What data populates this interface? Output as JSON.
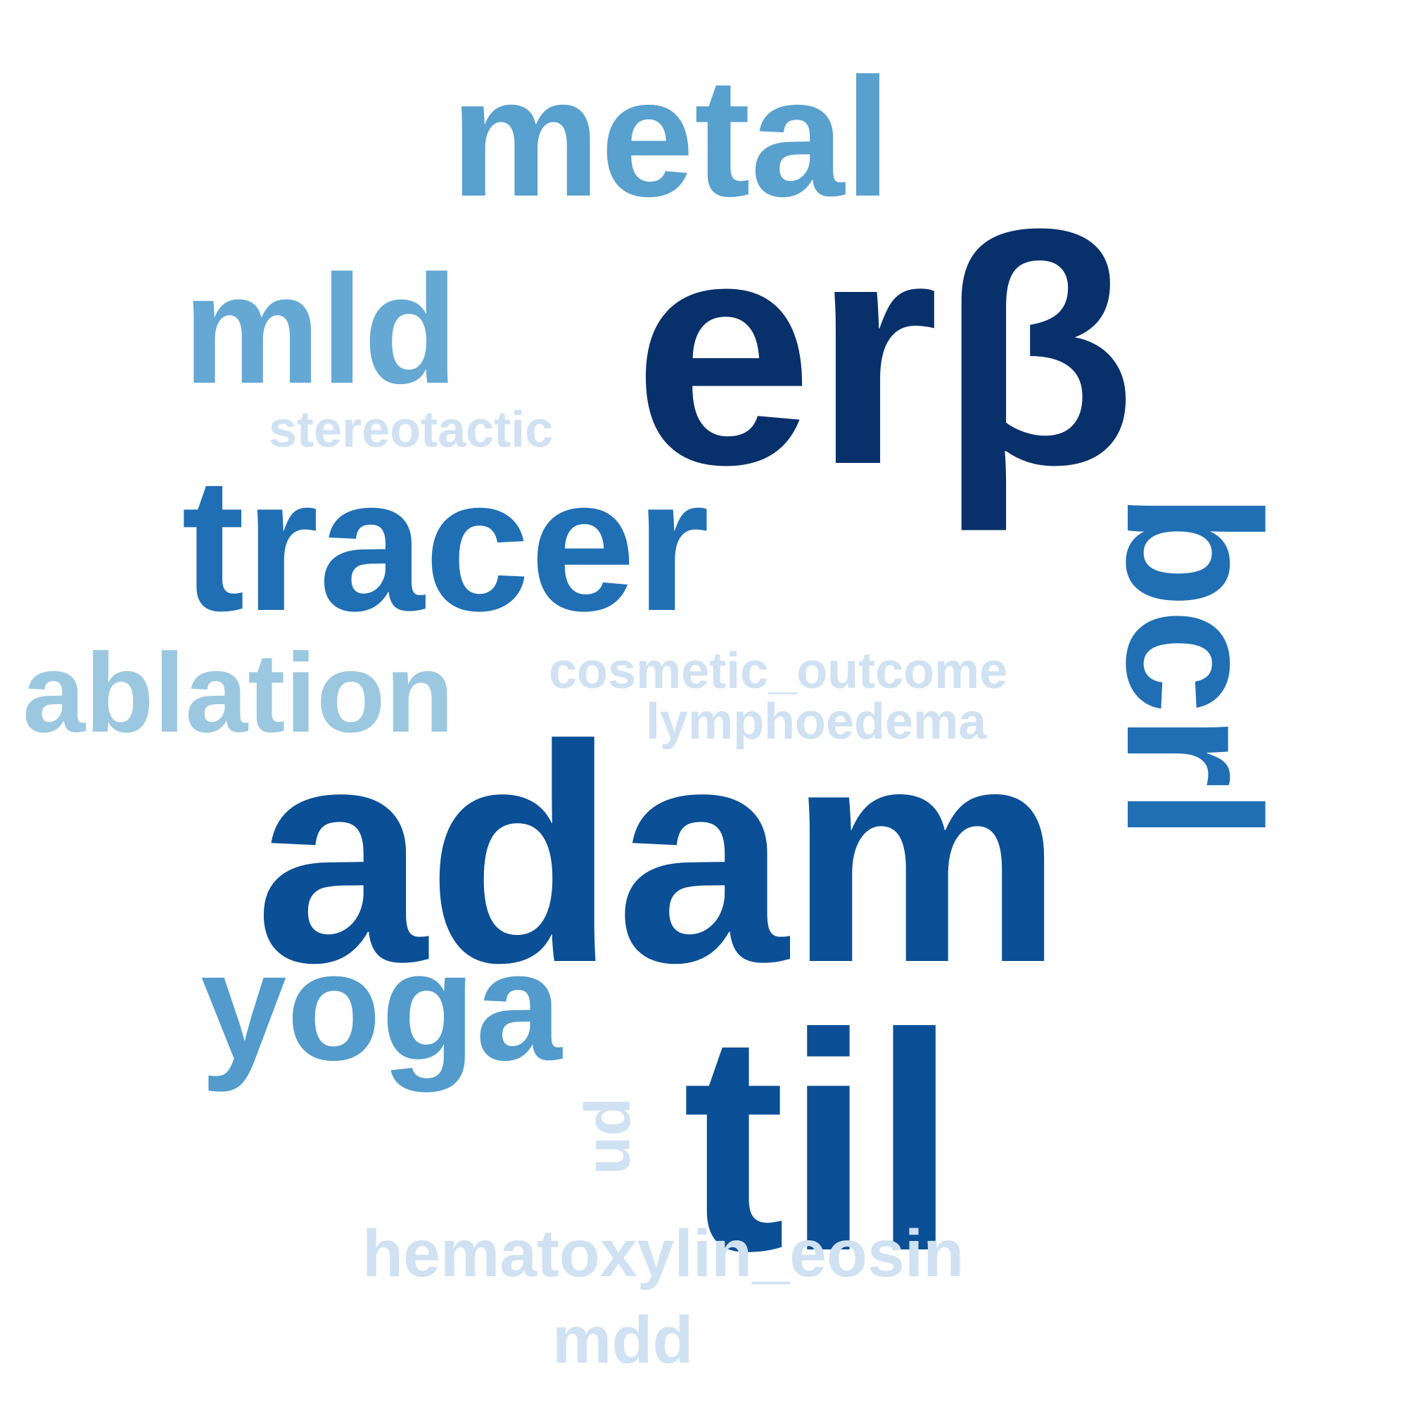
{
  "words": [
    {
      "text": "erβ",
      "color": "#08306b",
      "rotated": false
    },
    {
      "text": "adam",
      "color": "#0b4f96",
      "rotated": false
    },
    {
      "text": "til",
      "color": "#0b4f96",
      "rotated": false
    },
    {
      "text": "bcrl",
      "color": "#206fb4",
      "rotated": true
    },
    {
      "text": "tracer",
      "color": "#206fb4",
      "rotated": false
    },
    {
      "text": "metal",
      "color": "#58a0ce",
      "rotated": false
    },
    {
      "text": "yoga",
      "color": "#529bcc",
      "rotated": false
    },
    {
      "text": "mld",
      "color": "#64a8d3",
      "rotated": false
    },
    {
      "text": "ablation",
      "color": "#9bc8e0",
      "rotated": false
    },
    {
      "text": "stereotactic",
      "color": "#d0e1f2",
      "rotated": false
    },
    {
      "text": "cosmetic_outcome",
      "color": "#d0e1f2",
      "rotated": false
    },
    {
      "text": "lymphoedema",
      "color": "#d0e1f2",
      "rotated": false
    },
    {
      "text": "hematoxylin_eosin",
      "color": "#d0e1f2",
      "rotated": false
    },
    {
      "text": "mdd",
      "color": "#d0e1f2",
      "rotated": false
    },
    {
      "text": "pn",
      "color": "#d0e1f2",
      "rotated": true
    }
  ]
}
